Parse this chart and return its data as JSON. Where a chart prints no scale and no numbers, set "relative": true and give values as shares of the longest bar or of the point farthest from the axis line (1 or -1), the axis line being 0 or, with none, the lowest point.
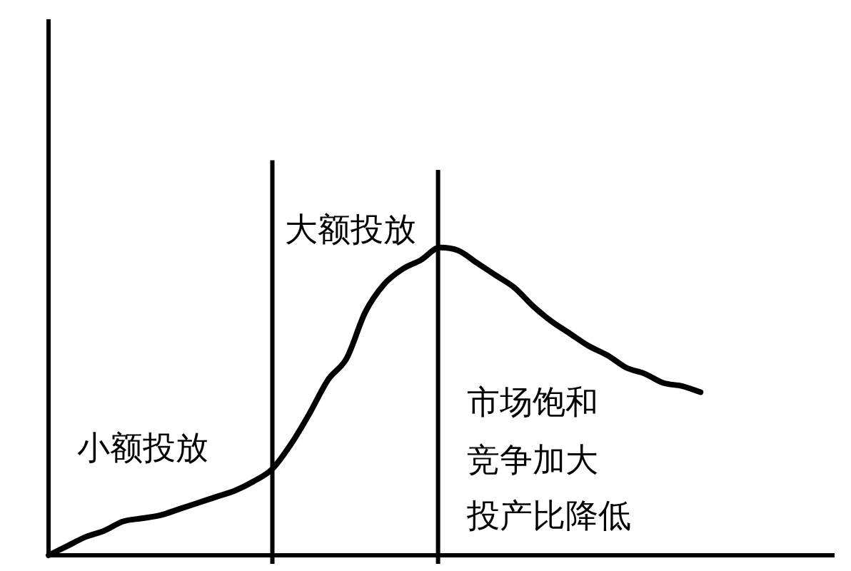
{
  "chart_data": {
    "type": "line",
    "relative": true,
    "categories": [
      null,
      null,
      null,
      null,
      null,
      null,
      null,
      null,
      null,
      null,
      null,
      null,
      null,
      null,
      null,
      null,
      null,
      null,
      null,
      null,
      null,
      null,
      null,
      null,
      null,
      null,
      null,
      null,
      null,
      null,
      null,
      null,
      null,
      null,
      null,
      null
    ],
    "series": [
      {
        "color": "#000000",
        "values": [
          0,
          0.03,
          0.06,
          0.08,
          0.11,
          0.12,
          0.13,
          0.15,
          0.17,
          0.19,
          0.21,
          0.24,
          0.28,
          0.36,
          0.46,
          0.57,
          0.64,
          0.79,
          0.88,
          0.93,
          0.96,
          1,
          0.99,
          0.95,
          0.91,
          0.87,
          0.81,
          0.76,
          0.72,
          0.68,
          0.65,
          0.61,
          0.59,
          0.56,
          0.55,
          0.53
        ]
      }
    ],
    "marker": "none",
    "line_style": "solid",
    "legend": false,
    "grid": "x",
    "annotations": [
      "小额投放",
      "大额投放",
      "市场饱和",
      "竞争加大",
      "投产比降低"
    ]
  }
}
